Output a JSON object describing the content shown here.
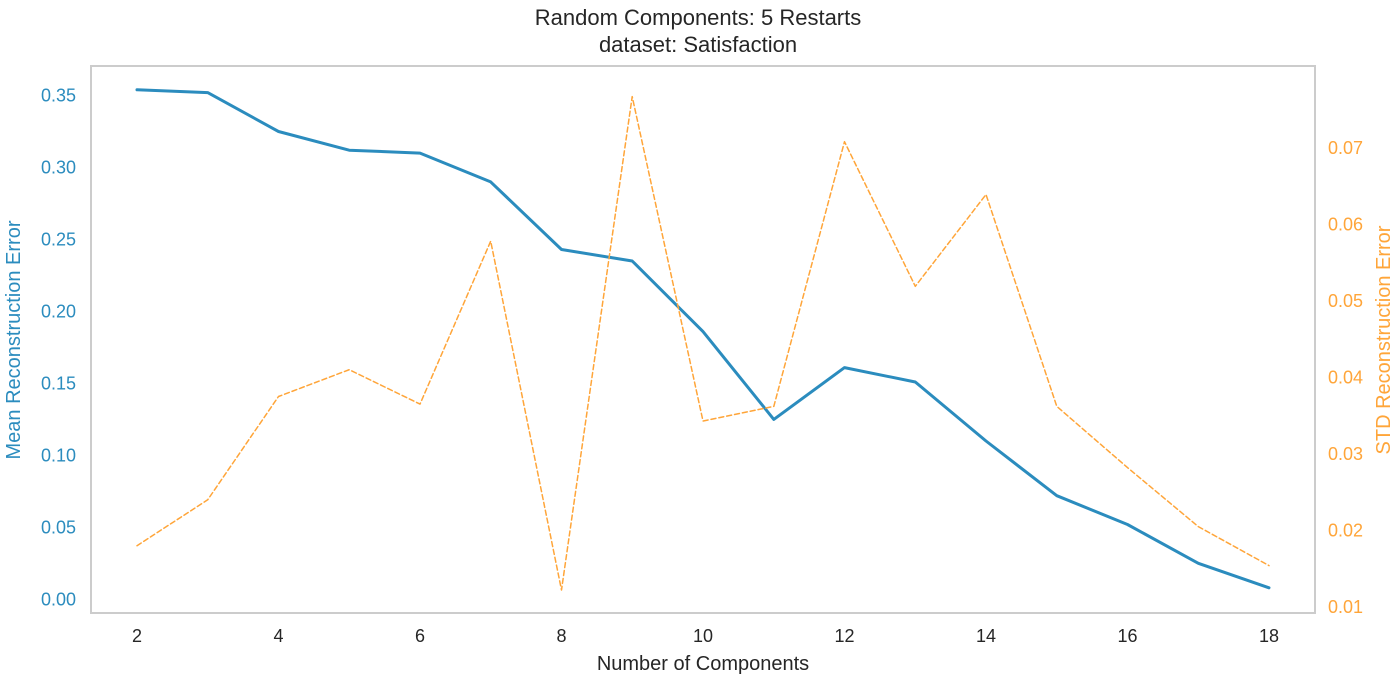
{
  "chart_data": {
    "type": "line",
    "title": "Random Components: 5 Restarts",
    "subtitle": "dataset: Satisfaction",
    "xlabel": "Number of Components",
    "ylabel_left": "Mean Reconstruction Error",
    "ylabel_right": "STD Reconstruction Error",
    "x": [
      2,
      3,
      4,
      5,
      6,
      7,
      8,
      9,
      10,
      11,
      12,
      13,
      14,
      15,
      16,
      17,
      18
    ],
    "xlim": [
      1.35,
      18.65
    ],
    "xticks": [
      2,
      4,
      6,
      8,
      10,
      12,
      14,
      16,
      18
    ],
    "ylim_left": [
      -0.0095,
      0.3705
    ],
    "yticks_left": [
      "0.00",
      "0.05",
      "0.10",
      "0.15",
      "0.20",
      "0.25",
      "0.30",
      "0.35"
    ],
    "ylim_right": [
      0.0092,
      0.0807
    ],
    "yticks_right": [
      "0.01",
      "0.02",
      "0.03",
      "0.04",
      "0.05",
      "0.06",
      "0.07"
    ],
    "grid": false,
    "series": [
      {
        "axis": "left",
        "style": "solid",
        "color": "#2b8cbe",
        "values": [
          0.354,
          0.352,
          0.325,
          0.312,
          0.31,
          0.29,
          0.243,
          0.235,
          0.186,
          0.125,
          0.161,
          0.151,
          0.11,
          0.072,
          0.052,
          0.025,
          0.008
        ]
      },
      {
        "axis": "right",
        "style": "dashed",
        "color": "#ffa539",
        "values": [
          0.018,
          0.024,
          0.0375,
          0.041,
          0.0365,
          0.0578,
          0.0122,
          0.0767,
          0.0343,
          0.0362,
          0.0708,
          0.0519,
          0.0639,
          0.0362,
          0.0282,
          0.0205,
          0.0154
        ]
      }
    ],
    "colors": {
      "left_axis": "#2b8cbe",
      "right_axis": "#ffa539",
      "frame": "#cccccc",
      "text": "#262626"
    }
  }
}
